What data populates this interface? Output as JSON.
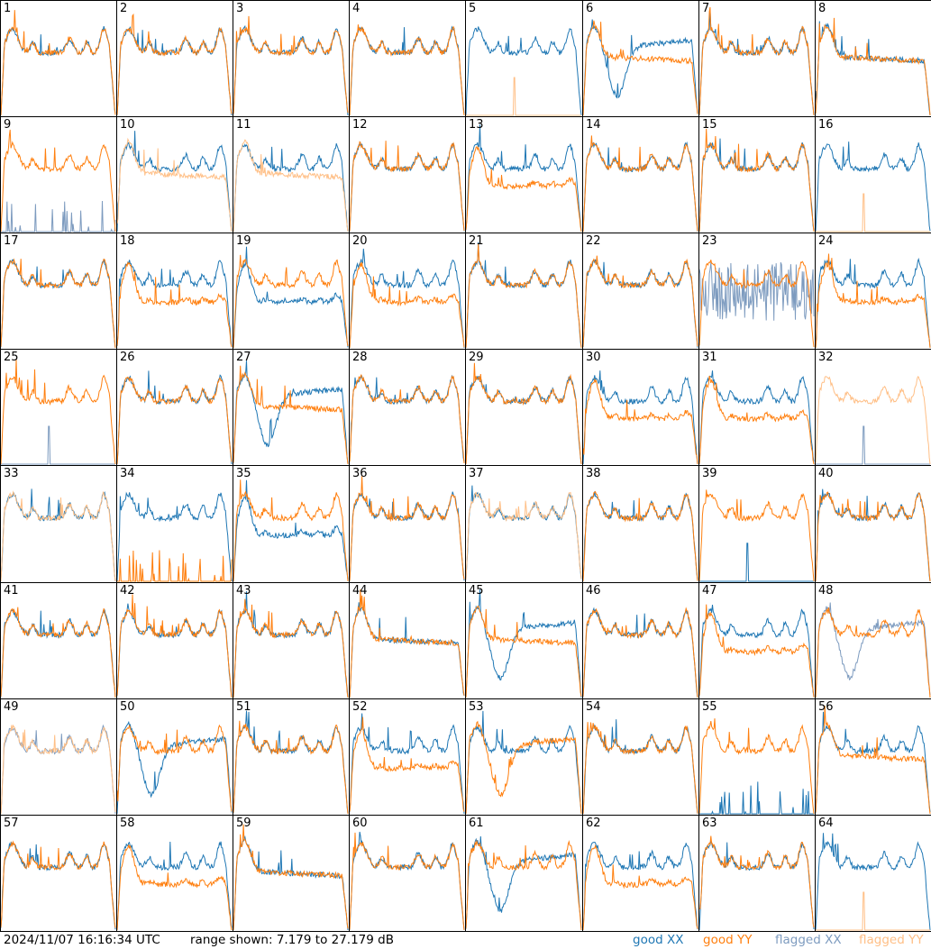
{
  "footer": {
    "timestamp": "2024/11/07 16:16:34 UTC",
    "range": "range shown: 7.179 to 27.179 dB"
  },
  "legend": {
    "good_xx": "good XX",
    "good_yy": "good YY",
    "flagged_xx": "flagged XX",
    "flagged_yy": "flagged YY"
  },
  "colors": {
    "good_xx": "#1f77b4",
    "good_yy": "#ff7f0e",
    "flagged_xx": "#7d9bbf",
    "flagged_yy": "#ffbf86",
    "border": "#000000"
  },
  "chart_data": {
    "type": "line",
    "layout": "8x8 grid of small multiples",
    "ylim": [
      7.179,
      27.179
    ],
    "yunit": "dB",
    "panels": [
      {
        "label": "1",
        "xx": {
          "shape": "std",
          "flag": false
        },
        "yy": {
          "shape": "std",
          "flag": false
        }
      },
      {
        "label": "2",
        "xx": {
          "shape": "std",
          "flag": false
        },
        "yy": {
          "shape": "std",
          "flag": false
        }
      },
      {
        "label": "3",
        "xx": {
          "shape": "std",
          "flag": false
        },
        "yy": {
          "shape": "std",
          "flag": false
        }
      },
      {
        "label": "4",
        "xx": {
          "shape": "std",
          "flag": false
        },
        "yy": {
          "shape": "std",
          "flag": false
        }
      },
      {
        "label": "5",
        "xx": {
          "shape": "std",
          "flag": false
        },
        "yy": {
          "shape": "spike",
          "flag": true
        }
      },
      {
        "label": "6",
        "xx": {
          "shape": "dip",
          "flag": false
        },
        "yy": {
          "shape": "flat",
          "flag": false
        }
      },
      {
        "label": "7",
        "xx": {
          "shape": "std",
          "flag": false
        },
        "yy": {
          "shape": "std",
          "flag": false
        }
      },
      {
        "label": "8",
        "xx": {
          "shape": "flat",
          "flag": false
        },
        "yy": {
          "shape": "flat",
          "flag": false
        }
      },
      {
        "label": "9",
        "xx": {
          "shape": "spikes",
          "flag": true
        },
        "yy": {
          "shape": "std",
          "flag": false
        }
      },
      {
        "label": "10",
        "xx": {
          "shape": "std",
          "flag": false
        },
        "yy": {
          "shape": "flat",
          "flag": true
        }
      },
      {
        "label": "11",
        "xx": {
          "shape": "std",
          "flag": false
        },
        "yy": {
          "shape": "flat",
          "flag": true
        }
      },
      {
        "label": "12",
        "xx": {
          "shape": "std",
          "flag": false
        },
        "yy": {
          "shape": "std",
          "flag": false
        }
      },
      {
        "label": "13",
        "xx": {
          "shape": "std",
          "flag": false
        },
        "yy": {
          "shape": "low",
          "flag": false
        }
      },
      {
        "label": "14",
        "xx": {
          "shape": "std",
          "flag": false
        },
        "yy": {
          "shape": "std",
          "flag": false
        }
      },
      {
        "label": "15",
        "xx": {
          "shape": "std",
          "flag": false
        },
        "yy": {
          "shape": "std",
          "flag": false
        }
      },
      {
        "label": "16",
        "xx": {
          "shape": "std",
          "flag": false
        },
        "yy": {
          "shape": "spike",
          "flag": true
        }
      },
      {
        "label": "17",
        "xx": {
          "shape": "std",
          "flag": false
        },
        "yy": {
          "shape": "std",
          "flag": false
        }
      },
      {
        "label": "18",
        "xx": {
          "shape": "std",
          "flag": false
        },
        "yy": {
          "shape": "low",
          "flag": false
        }
      },
      {
        "label": "19",
        "xx": {
          "shape": "low",
          "flag": false
        },
        "yy": {
          "shape": "std",
          "flag": false
        }
      },
      {
        "label": "20",
        "xx": {
          "shape": "std",
          "flag": false
        },
        "yy": {
          "shape": "low",
          "flag": false
        }
      },
      {
        "label": "21",
        "xx": {
          "shape": "std",
          "flag": false
        },
        "yy": {
          "shape": "std",
          "flag": false
        }
      },
      {
        "label": "22",
        "xx": {
          "shape": "std",
          "flag": false
        },
        "yy": {
          "shape": "std",
          "flag": false
        }
      },
      {
        "label": "23",
        "xx": {
          "shape": "noise",
          "flag": true
        },
        "yy": {
          "shape": "std",
          "flag": false
        }
      },
      {
        "label": "24",
        "xx": {
          "shape": "std",
          "flag": false
        },
        "yy": {
          "shape": "low",
          "flag": false
        }
      },
      {
        "label": "25",
        "xx": {
          "shape": "spike",
          "flag": true
        },
        "yy": {
          "shape": "std",
          "flag": false
        }
      },
      {
        "label": "26",
        "xx": {
          "shape": "std",
          "flag": false
        },
        "yy": {
          "shape": "std",
          "flag": false
        }
      },
      {
        "label": "27",
        "xx": {
          "shape": "dip",
          "flag": false
        },
        "yy": {
          "shape": "flat",
          "flag": false
        }
      },
      {
        "label": "28",
        "xx": {
          "shape": "std",
          "flag": false
        },
        "yy": {
          "shape": "std",
          "flag": false
        }
      },
      {
        "label": "29",
        "xx": {
          "shape": "std",
          "flag": false
        },
        "yy": {
          "shape": "std",
          "flag": false
        }
      },
      {
        "label": "30",
        "xx": {
          "shape": "std",
          "flag": false
        },
        "yy": {
          "shape": "low",
          "flag": false
        }
      },
      {
        "label": "31",
        "xx": {
          "shape": "std",
          "flag": false
        },
        "yy": {
          "shape": "low",
          "flag": false
        }
      },
      {
        "label": "32",
        "xx": {
          "shape": "spike",
          "flag": true
        },
        "yy": {
          "shape": "std",
          "flag": true
        }
      },
      {
        "label": "33",
        "xx": {
          "shape": "std",
          "flag": false
        },
        "yy": {
          "shape": "std",
          "flag": true
        }
      },
      {
        "label": "34",
        "xx": {
          "shape": "std",
          "flag": false
        },
        "yy": {
          "shape": "spikes",
          "flag": false
        }
      },
      {
        "label": "35",
        "xx": {
          "shape": "low",
          "flag": false
        },
        "yy": {
          "shape": "std",
          "flag": false
        }
      },
      {
        "label": "36",
        "xx": {
          "shape": "std",
          "flag": false
        },
        "yy": {
          "shape": "std",
          "flag": false
        }
      },
      {
        "label": "37",
        "xx": {
          "shape": "std",
          "flag": false
        },
        "yy": {
          "shape": "std",
          "flag": true
        }
      },
      {
        "label": "38",
        "xx": {
          "shape": "std",
          "flag": false
        },
        "yy": {
          "shape": "std",
          "flag": false
        }
      },
      {
        "label": "39",
        "xx": {
          "shape": "spike",
          "flag": false
        },
        "yy": {
          "shape": "std",
          "flag": false
        }
      },
      {
        "label": "40",
        "xx": {
          "shape": "std",
          "flag": false
        },
        "yy": {
          "shape": "std",
          "flag": false
        }
      },
      {
        "label": "41",
        "xx": {
          "shape": "std",
          "flag": false
        },
        "yy": {
          "shape": "std",
          "flag": false
        }
      },
      {
        "label": "42",
        "xx": {
          "shape": "std",
          "flag": false
        },
        "yy": {
          "shape": "std",
          "flag": false
        }
      },
      {
        "label": "43",
        "xx": {
          "shape": "std",
          "flag": false
        },
        "yy": {
          "shape": "std",
          "flag": false
        }
      },
      {
        "label": "44",
        "xx": {
          "shape": "flat",
          "flag": false
        },
        "yy": {
          "shape": "flat",
          "flag": false
        }
      },
      {
        "label": "45",
        "xx": {
          "shape": "dip",
          "flag": false
        },
        "yy": {
          "shape": "flat",
          "flag": false
        }
      },
      {
        "label": "46",
        "xx": {
          "shape": "std",
          "flag": false
        },
        "yy": {
          "shape": "std",
          "flag": false
        }
      },
      {
        "label": "47",
        "xx": {
          "shape": "std",
          "flag": false
        },
        "yy": {
          "shape": "low",
          "flag": false
        }
      },
      {
        "label": "48",
        "xx": {
          "shape": "dip",
          "flag": true
        },
        "yy": {
          "shape": "std",
          "flag": false
        }
      },
      {
        "label": "49",
        "xx": {
          "shape": "std",
          "flag": true
        },
        "yy": {
          "shape": "std",
          "flag": true
        }
      },
      {
        "label": "50",
        "xx": {
          "shape": "dip",
          "flag": false
        },
        "yy": {
          "shape": "std",
          "flag": false
        }
      },
      {
        "label": "51",
        "xx": {
          "shape": "std",
          "flag": false
        },
        "yy": {
          "shape": "std",
          "flag": false
        }
      },
      {
        "label": "52",
        "xx": {
          "shape": "std",
          "flag": false
        },
        "yy": {
          "shape": "low",
          "flag": false
        }
      },
      {
        "label": "53",
        "xx": {
          "shape": "std",
          "flag": false
        },
        "yy": {
          "shape": "dip",
          "flag": false
        }
      },
      {
        "label": "54",
        "xx": {
          "shape": "std",
          "flag": false
        },
        "yy": {
          "shape": "std",
          "flag": false
        }
      },
      {
        "label": "55",
        "xx": {
          "shape": "spikes",
          "flag": false
        },
        "yy": {
          "shape": "std",
          "flag": false
        }
      },
      {
        "label": "56",
        "xx": {
          "shape": "std",
          "flag": false
        },
        "yy": {
          "shape": "flat",
          "flag": false
        }
      },
      {
        "label": "57",
        "xx": {
          "shape": "std",
          "flag": false
        },
        "yy": {
          "shape": "std",
          "flag": false
        }
      },
      {
        "label": "58",
        "xx": {
          "shape": "std",
          "flag": false
        },
        "yy": {
          "shape": "low",
          "flag": false
        }
      },
      {
        "label": "59",
        "xx": {
          "shape": "flat",
          "flag": false
        },
        "yy": {
          "shape": "flat",
          "flag": false
        }
      },
      {
        "label": "60",
        "xx": {
          "shape": "std",
          "flag": false
        },
        "yy": {
          "shape": "std",
          "flag": false
        }
      },
      {
        "label": "61",
        "xx": {
          "shape": "dip",
          "flag": false
        },
        "yy": {
          "shape": "std",
          "flag": false
        }
      },
      {
        "label": "62",
        "xx": {
          "shape": "std",
          "flag": false
        },
        "yy": {
          "shape": "low",
          "flag": false
        }
      },
      {
        "label": "63",
        "xx": {
          "shape": "std",
          "flag": false
        },
        "yy": {
          "shape": "std",
          "flag": false
        }
      },
      {
        "label": "64",
        "xx": {
          "shape": "std",
          "flag": false
        },
        "yy": {
          "shape": "spike",
          "flag": true
        }
      }
    ]
  }
}
